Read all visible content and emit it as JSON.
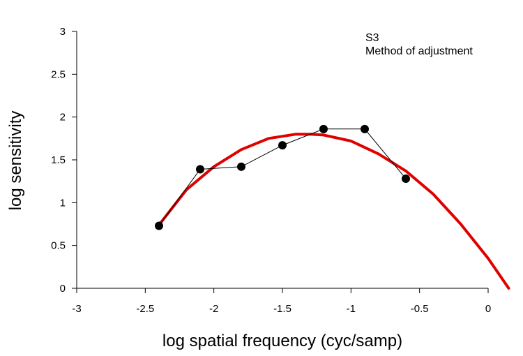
{
  "chart_data": {
    "type": "line",
    "xlabel": "log spatial frequency (cyc/samp)",
    "ylabel": "log sensitivity",
    "xlim": [
      -3,
      0
    ],
    "ylim": [
      0,
      3
    ],
    "x_ticks": [
      -3,
      -2.5,
      -2,
      -1.5,
      -1,
      -0.5,
      0
    ],
    "y_ticks": [
      0,
      0.5,
      1,
      1.5,
      2,
      2.5,
      3
    ],
    "x_tick_labels": [
      "-3",
      "-2.5",
      "-2",
      "-1.5",
      "-1",
      "-0.5",
      "0"
    ],
    "y_tick_labels": [
      "0",
      "0.5",
      "1",
      "1.5",
      "2",
      "2.5",
      "3"
    ],
    "annotations": [
      "S3",
      "Method of adjustment"
    ],
    "grid": false,
    "series": [
      {
        "style": "points-connected",
        "color": "#000000",
        "x": [
          -2.4,
          -2.1,
          -1.8,
          -1.5,
          -1.2,
          -0.9,
          -0.6
        ],
        "y": [
          0.73,
          1.39,
          1.42,
          1.67,
          1.86,
          1.86,
          1.28
        ]
      },
      {
        "style": "curve",
        "color": "#e00000",
        "x": [
          -2.4,
          -2.2,
          -2.0,
          -1.8,
          -1.6,
          -1.4,
          -1.3,
          -1.2,
          -1.0,
          -0.8,
          -0.6,
          -0.4,
          -0.2,
          0.0,
          0.15
        ],
        "y": [
          0.74,
          1.15,
          1.42,
          1.62,
          1.75,
          1.8,
          1.8,
          1.79,
          1.72,
          1.57,
          1.37,
          1.1,
          0.75,
          0.35,
          0.0
        ]
      }
    ]
  }
}
